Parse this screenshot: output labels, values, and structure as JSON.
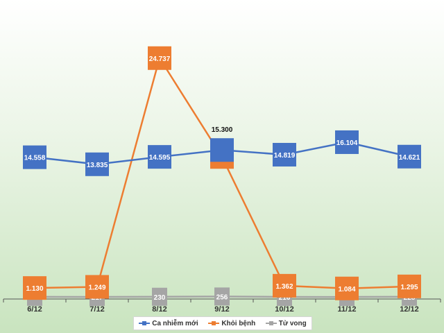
{
  "chart_data": {
    "type": "line",
    "categories": [
      "6/12",
      "7/12",
      "8/12",
      "9/12",
      "10/12",
      "11/12",
      "12/12"
    ],
    "series": [
      {
        "name": "Ca nhiễm mới",
        "color": "#4472c4",
        "values": [
          14558,
          13835,
          14595,
          15300,
          14819,
          16104,
          14621
        ],
        "labels": [
          "14.558",
          "13.835",
          "14.595",
          "15.300",
          "14.819",
          "16.104",
          "14.621"
        ]
      },
      {
        "name": "Khỏi bệnh",
        "color": "#ed7d31",
        "values": [
          1130,
          1249,
          24737,
          14586,
          1362,
          1084,
          1295
        ],
        "labels": [
          "1.130",
          "1.249",
          "24.737",
          "14.586",
          "1.362",
          "1.084",
          "1.295"
        ]
      },
      {
        "name": "Tử vong",
        "color": "#a5a5a5",
        "values": [
          223,
          217,
          230,
          256,
          216,
          209,
          228
        ],
        "labels": [
          "223",
          "217",
          "230",
          "256",
          "216",
          "209",
          "228"
        ]
      }
    ],
    "ylim": [
      0,
      27000
    ],
    "grid": false,
    "legend": "bottom"
  }
}
